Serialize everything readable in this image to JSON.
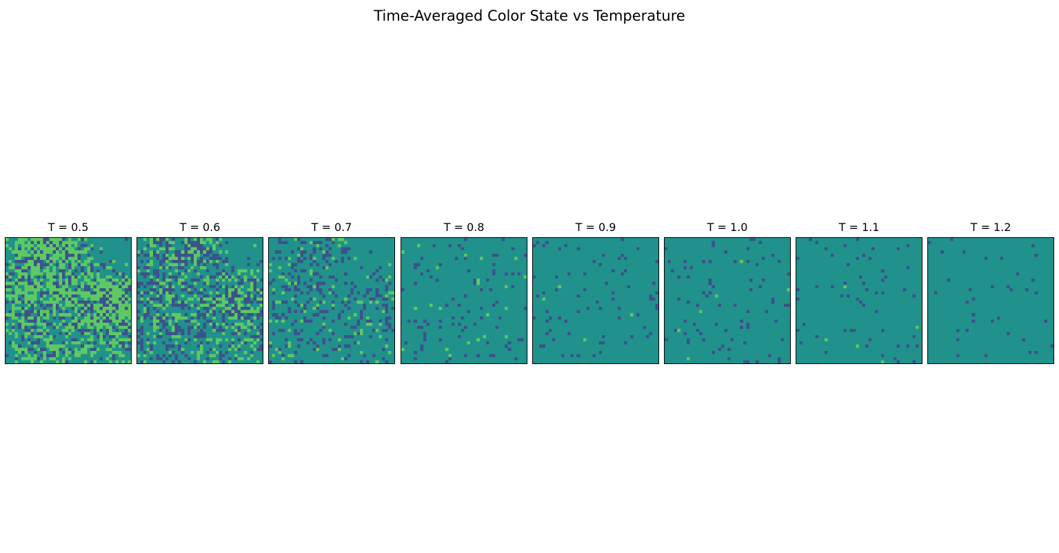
{
  "figure": {
    "title": "Time-Averaged Color State vs Temperature"
  },
  "colors": {
    "background": "#21918c",
    "low": "#3b528b",
    "high": "#5ec962"
  },
  "chart_data": [
    {
      "type": "heatmap",
      "title": "T = 0.5",
      "temperature": 0.5,
      "grid_size": [
        40,
        40
      ],
      "fraction_low": 0.16,
      "fraction_high": 0.3,
      "clustered": true
    },
    {
      "type": "heatmap",
      "title": "T = 0.6",
      "temperature": 0.6,
      "grid_size": [
        40,
        40
      ],
      "fraction_low": 0.18,
      "fraction_high": 0.16,
      "clustered": true
    },
    {
      "type": "heatmap",
      "title": "T = 0.7",
      "temperature": 0.7,
      "grid_size": [
        40,
        40
      ],
      "fraction_low": 0.12,
      "fraction_high": 0.05,
      "clustered": true
    },
    {
      "type": "heatmap",
      "title": "T = 0.8",
      "temperature": 0.8,
      "grid_size": [
        40,
        40
      ],
      "fraction_low": 0.06,
      "fraction_high": 0.012,
      "clustered": false
    },
    {
      "type": "heatmap",
      "title": "T = 0.9",
      "temperature": 0.9,
      "grid_size": [
        40,
        40
      ],
      "fraction_low": 0.045,
      "fraction_high": 0.002,
      "clustered": false
    },
    {
      "type": "heatmap",
      "title": "T = 1.0",
      "temperature": 1.0,
      "grid_size": [
        40,
        40
      ],
      "fraction_low": 0.045,
      "fraction_high": 0.003,
      "clustered": false
    },
    {
      "type": "heatmap",
      "title": "T = 1.1",
      "temperature": 1.1,
      "grid_size": [
        40,
        40
      ],
      "fraction_low": 0.035,
      "fraction_high": 0.002,
      "clustered": false
    },
    {
      "type": "heatmap",
      "title": "T = 1.2",
      "temperature": 1.2,
      "grid_size": [
        40,
        40
      ],
      "fraction_low": 0.025,
      "fraction_high": 0.0,
      "clustered": false
    }
  ]
}
